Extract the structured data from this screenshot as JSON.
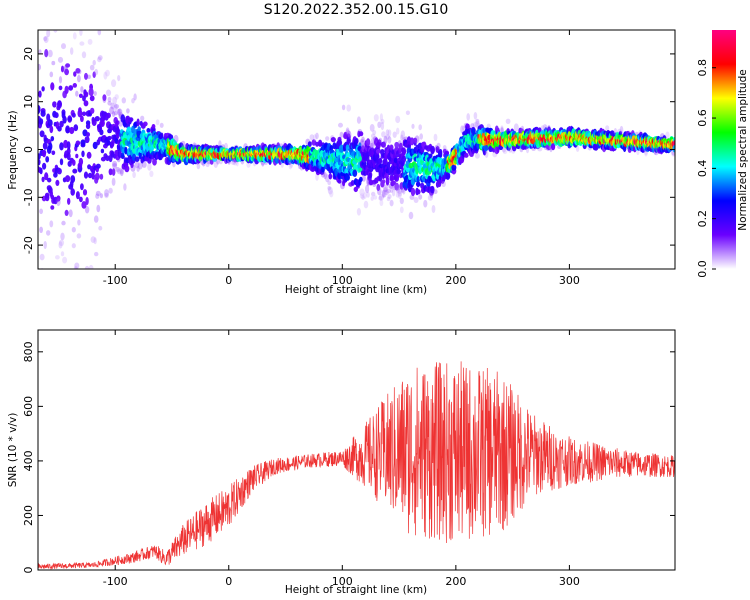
{
  "title": "S120.2022.352.00.15.G10",
  "chart_data": [
    {
      "type": "heatmap",
      "xlabel": "Height of straight line (km)",
      "ylabel": "Frequency (Hz)",
      "xlim": [
        -168,
        393
      ],
      "ylim": [
        -25,
        25
      ],
      "xticks": [
        -100,
        0,
        100,
        200,
        300
      ],
      "yticks": [
        -20,
        -10,
        0,
        10,
        20
      ],
      "colorbar": {
        "label": "Normalized spectral amplitude",
        "range": [
          0,
          0.95
        ],
        "ticks": [
          0.0,
          0.2,
          0.4,
          0.6,
          0.8
        ],
        "colormap": [
          "#ffffff",
          "#6a00ff",
          "#0000ff",
          "#00ffff",
          "#00ff00",
          "#ffff00",
          "#ff0000",
          "#ff0080"
        ]
      },
      "ridge": {
        "description_points": [
          {
            "x": -168,
            "center": 2,
            "spread": 25
          },
          {
            "x": -120,
            "center": 1,
            "spread": 20
          },
          {
            "x": -95,
            "center": 2,
            "spread": 6
          },
          {
            "x": -60,
            "center": 1,
            "spread": 3
          },
          {
            "x": -40,
            "center": -1,
            "spread": 1.5
          },
          {
            "x": 0,
            "center": -1,
            "spread": 1
          },
          {
            "x": 60,
            "center": -1,
            "spread": 1.5
          },
          {
            "x": 90,
            "center": -2,
            "spread": 4
          },
          {
            "x": 130,
            "center": -3,
            "spread": 7
          },
          {
            "x": 180,
            "center": -4,
            "spread": 5
          },
          {
            "x": 195,
            "center": -3,
            "spread": 2
          },
          {
            "x": 210,
            "center": 2,
            "spread": 3
          },
          {
            "x": 240,
            "center": 2,
            "spread": 1.5
          },
          {
            "x": 300,
            "center": 2.5,
            "spread": 1.5
          },
          {
            "x": 393,
            "center": 1,
            "spread": 1.2
          }
        ]
      }
    },
    {
      "type": "line",
      "xlabel": "Height of straight line (km)",
      "ylabel": "SNR (10 * v/v)",
      "xlim": [
        -168,
        393
      ],
      "ylim": [
        0,
        880
      ],
      "xticks": [
        -100,
        0,
        100,
        200,
        300
      ],
      "yticks": [
        0,
        200,
        400,
        600,
        800
      ],
      "series": [
        {
          "color": "#ee3333",
          "envelope": [
            {
              "x": -168,
              "mean": 12,
              "amp": 10
            },
            {
              "x": -120,
              "mean": 18,
              "amp": 10
            },
            {
              "x": -85,
              "mean": 45,
              "amp": 20
            },
            {
              "x": -65,
              "mean": 70,
              "amp": 25
            },
            {
              "x": -55,
              "mean": 40,
              "amp": 30
            },
            {
              "x": -40,
              "mean": 110,
              "amp": 60
            },
            {
              "x": -20,
              "mean": 170,
              "amp": 80
            },
            {
              "x": 0,
              "mean": 230,
              "amp": 80
            },
            {
              "x": 20,
              "mean": 330,
              "amp": 50
            },
            {
              "x": 40,
              "mean": 380,
              "amp": 30
            },
            {
              "x": 70,
              "mean": 400,
              "amp": 25
            },
            {
              "x": 100,
              "mean": 410,
              "amp": 30
            },
            {
              "x": 120,
              "mean": 420,
              "amp": 120
            },
            {
              "x": 160,
              "mean": 440,
              "amp": 320
            },
            {
              "x": 200,
              "mean": 430,
              "amp": 340
            },
            {
              "x": 240,
              "mean": 430,
              "amp": 300
            },
            {
              "x": 270,
              "mean": 420,
              "amp": 150
            },
            {
              "x": 300,
              "mean": 400,
              "amp": 90
            },
            {
              "x": 350,
              "mean": 390,
              "amp": 50
            },
            {
              "x": 393,
              "mean": 380,
              "amp": 40
            }
          ]
        }
      ]
    }
  ]
}
